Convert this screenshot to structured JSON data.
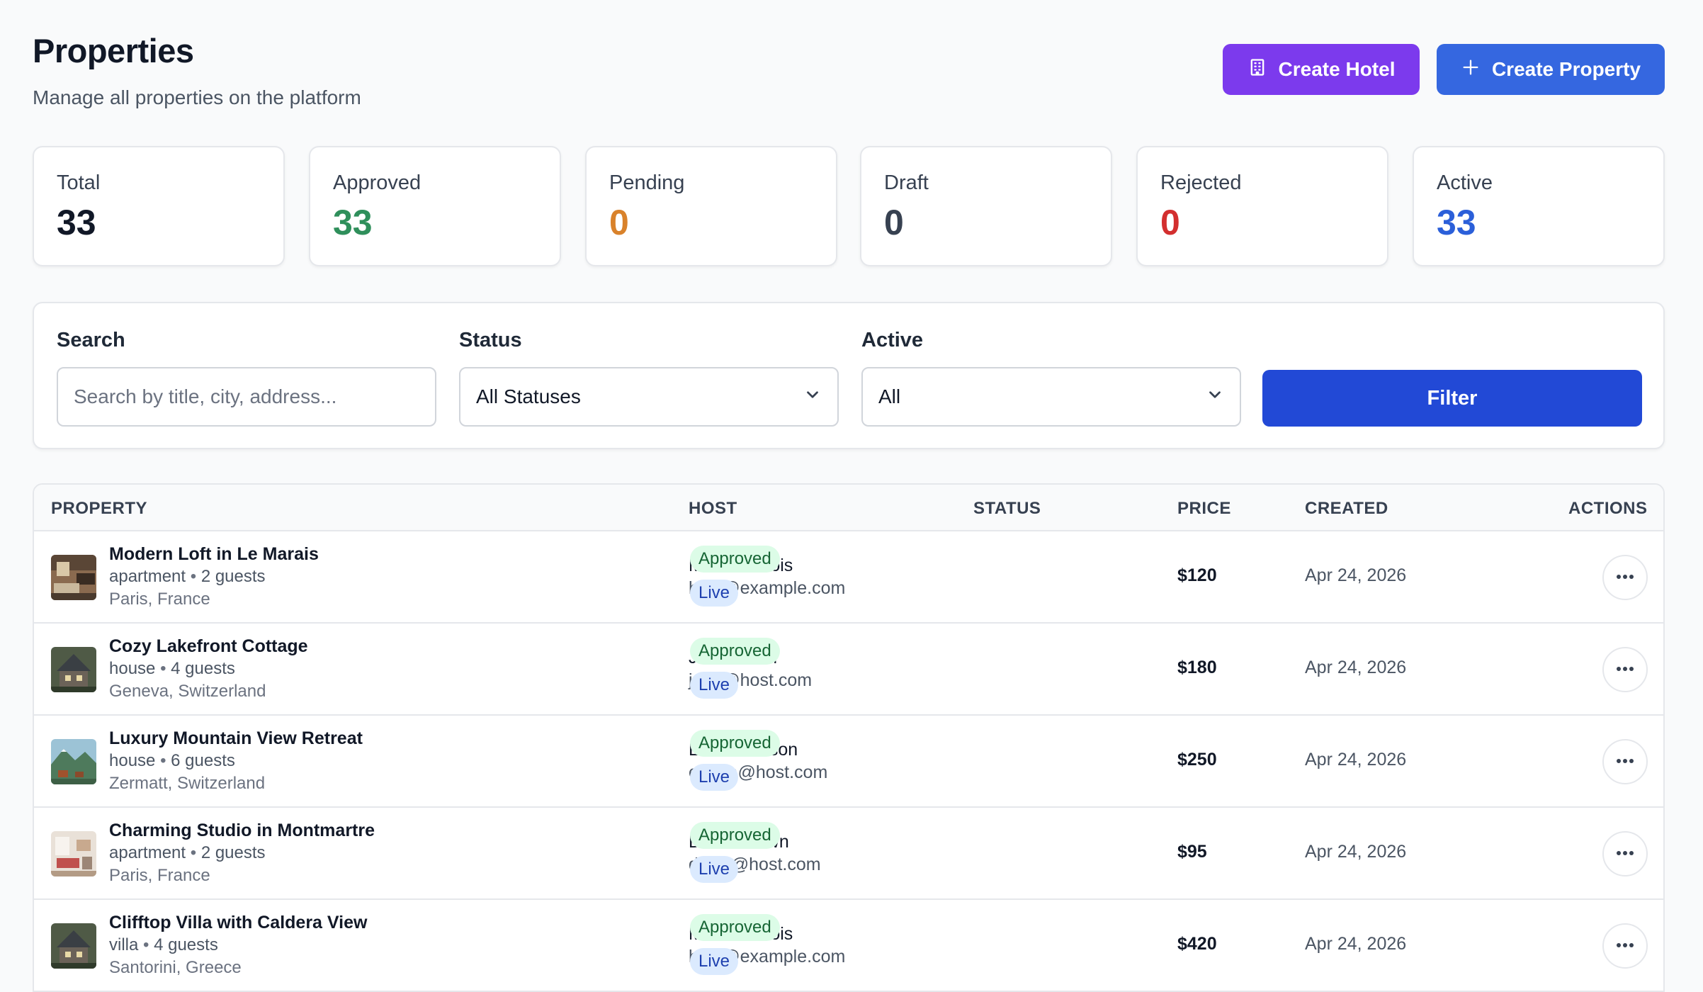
{
  "header": {
    "title": "Properties",
    "subtitle": "Manage all properties on the platform",
    "create_hotel_label": "Create Hotel",
    "create_property_label": "Create Property"
  },
  "stats": [
    {
      "label": "Total",
      "value": "33",
      "color": "#111827"
    },
    {
      "label": "Approved",
      "value": "33",
      "color": "#2f8f5b"
    },
    {
      "label": "Pending",
      "value": "0",
      "color": "#d9822b"
    },
    {
      "label": "Draft",
      "value": "0",
      "color": "#374151"
    },
    {
      "label": "Rejected",
      "value": "0",
      "color": "#d32f2f"
    },
    {
      "label": "Active",
      "value": "33",
      "color": "#2b5fd9"
    }
  ],
  "filters": {
    "search_label": "Search",
    "search_placeholder": "Search by title, city, address...",
    "status_label": "Status",
    "status_value": "All Statuses",
    "active_label": "Active",
    "active_value": "All",
    "filter_label": "Filter"
  },
  "table": {
    "columns": {
      "property": "PROPERTY",
      "host": "HOST",
      "status": "STATUS",
      "price": "PRICE",
      "created": "CREATED",
      "actions": "ACTIONS"
    },
    "rows": [
      {
        "title": "Modern Loft in Le Marais",
        "type": "apartment",
        "guests": "2 guests",
        "location": "Paris, France",
        "host_name": "Marie Dubois",
        "host_email": "host@example.com",
        "status": "Approved",
        "live": "Live",
        "price": "$120",
        "created": "Apr 24, 2026",
        "thumb": "loft"
      },
      {
        "title": "Cozy Lakefront Cottage",
        "type": "house",
        "guests": "4 guests",
        "location": "Geneva, Switzerland",
        "host_name": "John Smith",
        "host_email": "john@host.com",
        "status": "Approved",
        "live": "Live",
        "price": "$180",
        "created": "Apr 24, 2026",
        "thumb": "cottage"
      },
      {
        "title": "Luxury Mountain View Retreat",
        "type": "house",
        "guests": "6 guests",
        "location": "Zermatt, Switzerland",
        "host_name": "Emma Wilson",
        "host_email": "emma@host.com",
        "status": "Approved",
        "live": "Live",
        "price": "$250",
        "created": "Apr 24, 2026",
        "thumb": "mountain"
      },
      {
        "title": "Charming Studio in Montmartre",
        "type": "apartment",
        "guests": "2 guests",
        "location": "Paris, France",
        "host_name": "David Brown",
        "host_email": "david@host.com",
        "status": "Approved",
        "live": "Live",
        "price": "$95",
        "created": "Apr 24, 2026",
        "thumb": "studio"
      },
      {
        "title": "Clifftop Villa with Caldera View",
        "type": "villa",
        "guests": "4 guests",
        "location": "Santorini, Greece",
        "host_name": "Marie Dubois",
        "host_email": "host@example.com",
        "status": "Approved",
        "live": "Live",
        "price": "$420",
        "created": "Apr 24, 2026",
        "thumb": "cottage"
      }
    ]
  }
}
